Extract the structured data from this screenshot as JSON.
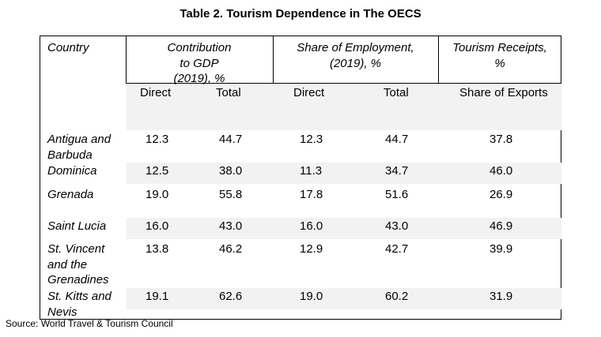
{
  "title": "Table 2. Tourism Dependence in The OECS",
  "headers": {
    "country": "Country",
    "gdp": [
      "Contribution",
      "to GDP",
      "(2019), %"
    ],
    "employment": [
      "Share of Employment,",
      "(2019), %"
    ],
    "receipts": [
      "Tourism Receipts,",
      "%"
    ],
    "sub": {
      "gdp_direct": "Direct",
      "gdp_total": "Total",
      "emp_direct": "Direct",
      "emp_total": "Total",
      "receipts": "Share of Exports"
    }
  },
  "rows": [
    {
      "country": [
        "Antigua and",
        "Barbuda"
      ],
      "gdp_direct": "12.3",
      "gdp_total": "44.7",
      "emp_direct": "12.3",
      "emp_total": "44.7",
      "exports": "37.8"
    },
    {
      "country": [
        "Dominica"
      ],
      "gdp_direct": "12.5",
      "gdp_total": "38.0",
      "emp_direct": "11.3",
      "emp_total": "34.7",
      "exports": "46.0"
    },
    {
      "country": [
        "Grenada"
      ],
      "gdp_direct": "19.0",
      "gdp_total": "55.8",
      "emp_direct": "17.8",
      "emp_total": "51.6",
      "exports": "26.9"
    },
    {
      "country": [
        "Saint Lucia"
      ],
      "gdp_direct": "16.0",
      "gdp_total": "43.0",
      "emp_direct": "16.0",
      "emp_total": "43.0",
      "exports": "46.9"
    },
    {
      "country": [
        "St. Vincent",
        "and the",
        "Grenadines"
      ],
      "gdp_direct": "13.8",
      "gdp_total": "46.2",
      "emp_direct": "12.9",
      "emp_total": "42.7",
      "exports": "39.9"
    },
    {
      "country": [
        "St. Kitts and",
        "Nevis"
      ],
      "gdp_direct": "19.1",
      "gdp_total": "62.6",
      "emp_direct": "19.0",
      "emp_total": "60.2",
      "exports": "31.9"
    }
  ],
  "source": "Source: World Travel & Tourism Council"
}
